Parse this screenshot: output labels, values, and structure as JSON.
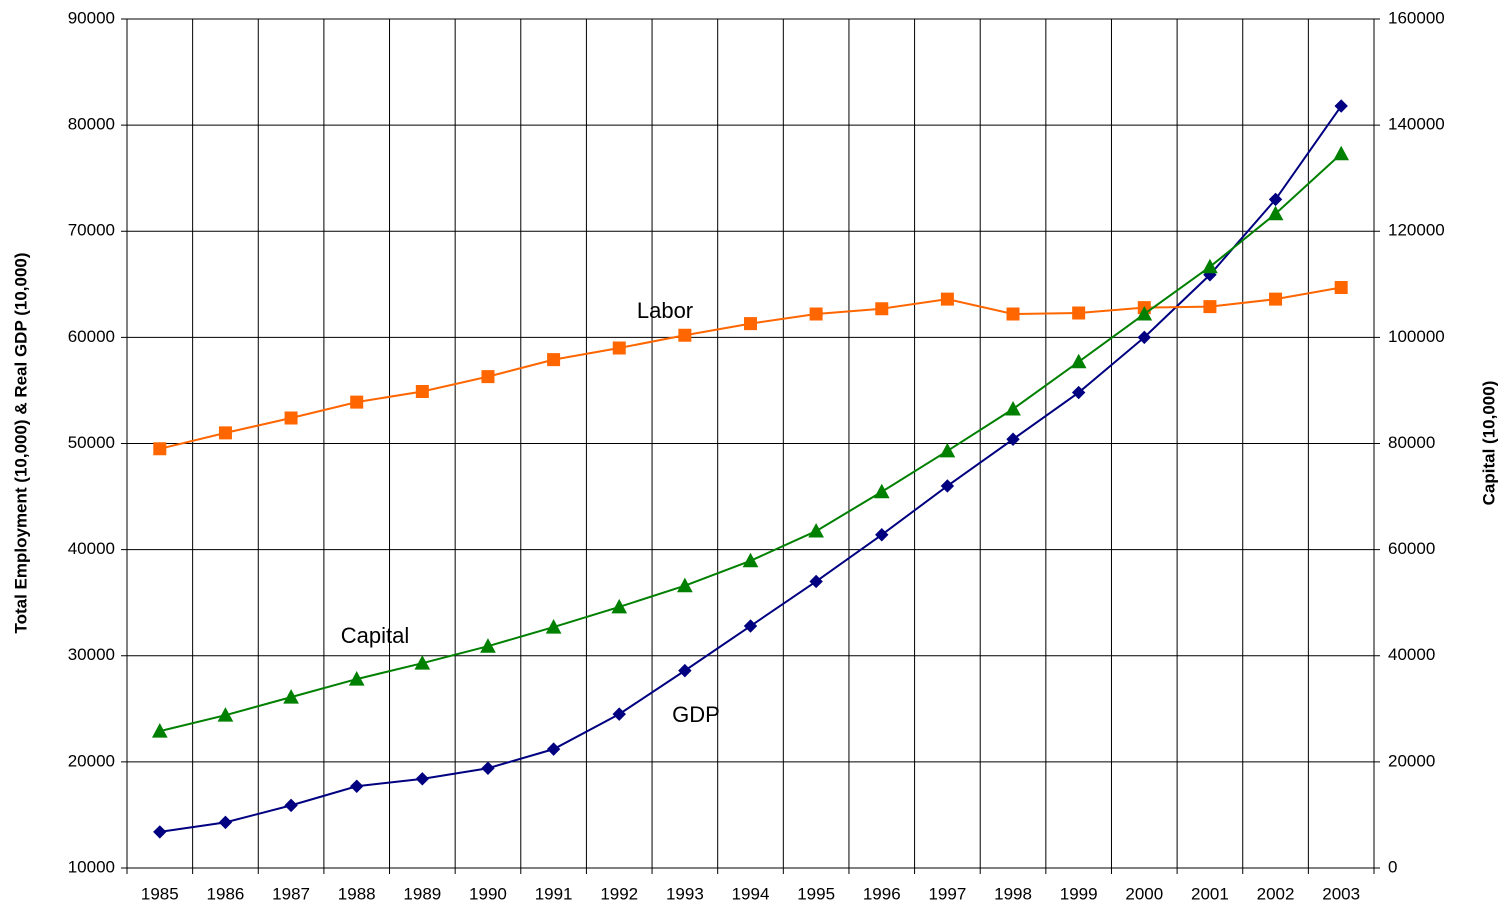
{
  "chart_data": {
    "type": "line",
    "categories": [
      "1985",
      "1986",
      "1987",
      "1988",
      "1989",
      "1990",
      "1991",
      "1992",
      "1993",
      "1994",
      "1995",
      "1996",
      "1997",
      "1998",
      "1999",
      "2000",
      "2001",
      "2002",
      "2003"
    ],
    "y_label": "Total Employment (10,000) & Real GDP (10,000)",
    "y2_label": "Capital (10,000)",
    "ylim": [
      10000,
      90000
    ],
    "yticks": [
      10000,
      20000,
      30000,
      40000,
      50000,
      60000,
      70000,
      80000,
      90000
    ],
    "y2lim": [
      0,
      160000
    ],
    "y2ticks": [
      0,
      20000,
      40000,
      60000,
      80000,
      100000,
      120000,
      140000,
      160000
    ],
    "grid": true,
    "series": [
      {
        "name": "GDP",
        "color": "#000080",
        "marker": "diamond",
        "values": [
          13400,
          14300,
          15900,
          17700,
          18400,
          19400,
          21200,
          24500,
          28600,
          32800,
          37000,
          41400,
          46000,
          50400,
          54800,
          60000,
          65900,
          73000,
          81800
        ]
      },
      {
        "name": "Labor",
        "color": "#FF6600",
        "marker": "square",
        "values": [
          49500,
          51000,
          52400,
          53900,
          54900,
          56300,
          57900,
          59000,
          60200,
          61300,
          62200,
          62700,
          63600,
          62200,
          62300,
          62800,
          62900,
          63600,
          64700
        ]
      },
      {
        "name": "Capital",
        "color": "#008000",
        "marker": "triangle",
        "axis": "y2",
        "values": [
          25800,
          28800,
          32200,
          35600,
          38600,
          41800,
          45400,
          49200,
          53200,
          57900,
          63500,
          70900,
          78600,
          86500,
          95400,
          104400,
          113300,
          123300,
          134600
        ]
      }
    ]
  }
}
